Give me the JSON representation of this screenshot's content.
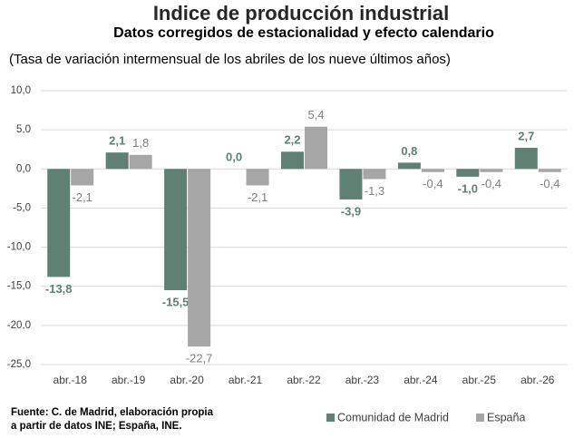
{
  "chart_data": {
    "type": "bar",
    "title": "Indice de producción industrial",
    "subtitle": "Datos corregidos de estacionalidad y efecto calendario",
    "note": "(Tasa de variación intermensual de los abriles de los nueve últimos años)",
    "source": [
      "Fuente: C. de Madrid, elaboración propia",
      "a partir de datos INE; España, INE."
    ],
    "categories": [
      "abr.-18",
      "abr.-19",
      "abr.-20",
      "abr.-21",
      "abr.-22",
      "abr.-23",
      "abr.-24",
      "abr.-25",
      "abr.-26"
    ],
    "series": [
      {
        "name": "Comunidad de Madrid",
        "color": "#5f8073",
        "label_color": "#5f8073",
        "values": [
          -13.8,
          2.1,
          -15.5,
          0.0,
          2.2,
          -3.9,
          0.8,
          -1.0,
          2.7
        ],
        "value_labels": [
          "-13,8",
          "2,1",
          "-15,5",
          "0,0",
          "2,2",
          "-3,9",
          "0,8",
          "-1,0",
          "2,7"
        ]
      },
      {
        "name": "España",
        "color": "#a6a6a6",
        "label_color": "#7f7f7f",
        "values": [
          -2.1,
          1.8,
          -22.7,
          -2.1,
          5.4,
          -1.3,
          -0.4,
          -0.4,
          -0.4
        ],
        "value_labels": [
          "-2,1",
          "1,8",
          "-22,7",
          "-2,1",
          "5,4",
          "-1,3",
          "-0,4",
          "-0,4",
          "-0,4"
        ]
      }
    ],
    "ylim": [
      -25,
      10
    ],
    "yticks": [
      {
        "value": -25,
        "label": "-25,0"
      },
      {
        "value": -20,
        "label": "-20,0"
      },
      {
        "value": -15,
        "label": "-15,0"
      },
      {
        "value": -10,
        "label": "-10,0"
      },
      {
        "value": -5,
        "label": "-5,0"
      },
      {
        "value": 0,
        "label": "0,0"
      },
      {
        "value": 5,
        "label": "5,0"
      },
      {
        "value": 10,
        "label": "10,0"
      }
    ],
    "grid": true,
    "legend": "bottom-right"
  }
}
